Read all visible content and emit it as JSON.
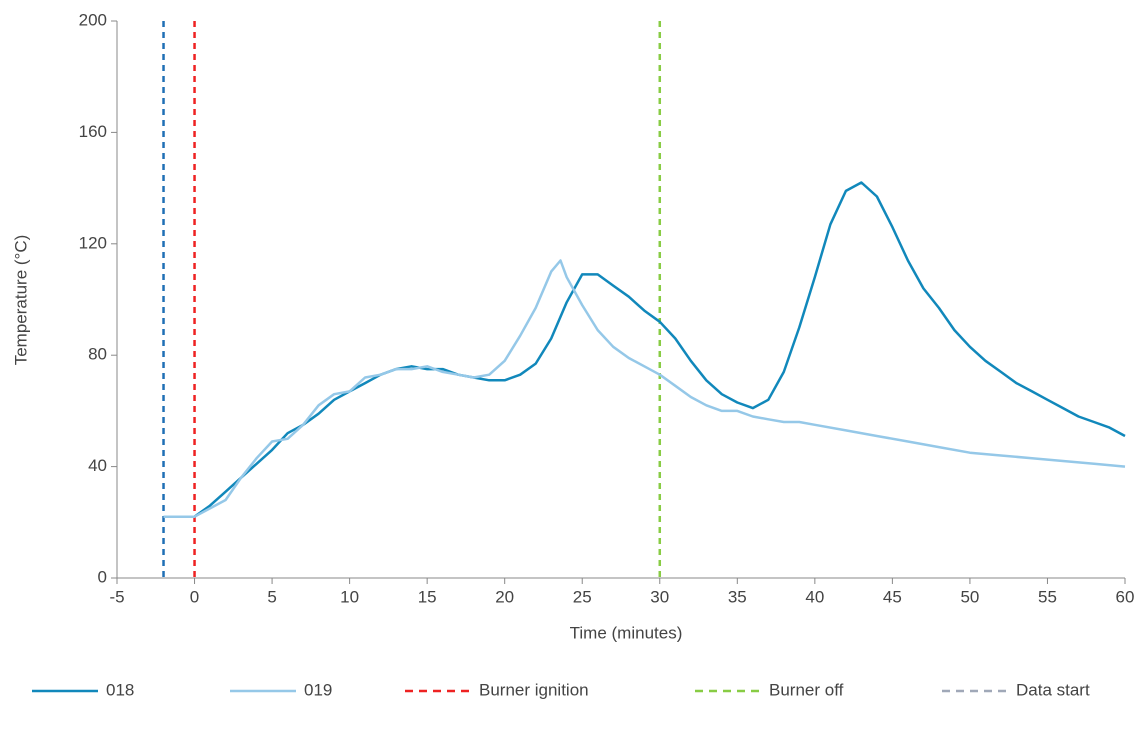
{
  "chart_data": {
    "type": "line",
    "x_label": "Time (minutes)",
    "y_label": "Temperature (°C)",
    "xlim": [
      -5,
      60
    ],
    "xticks": [
      -5,
      0,
      5,
      10,
      15,
      20,
      25,
      30,
      35,
      40,
      45,
      50,
      55,
      60
    ],
    "ylim": [
      0,
      200
    ],
    "yticks": [
      0,
      40,
      80,
      120,
      160,
      200
    ],
    "grid": false,
    "series": [
      {
        "name": "018",
        "color": "#1188bb",
        "x": [
          -2,
          -1,
          0,
          1,
          2,
          3,
          4,
          5,
          6,
          7,
          8,
          9,
          10,
          11,
          12,
          13,
          14,
          15,
          16,
          17,
          18,
          19,
          20,
          21,
          22,
          23,
          24,
          25,
          26,
          27,
          28,
          29,
          30,
          31,
          32,
          33,
          34,
          35,
          36,
          37,
          38,
          39,
          40,
          41,
          42,
          43,
          44,
          45,
          46,
          47,
          48,
          49,
          50,
          51,
          52,
          53,
          54,
          55,
          56,
          57,
          58,
          59,
          60
        ],
        "values": [
          22,
          22,
          22,
          26,
          31,
          36,
          41,
          46,
          52,
          55,
          59,
          64,
          67,
          70,
          73,
          75,
          76,
          75,
          75,
          73,
          72,
          71,
          71,
          73,
          77,
          86,
          99,
          109,
          109,
          105,
          101,
          96,
          92,
          86,
          78,
          71,
          66,
          63,
          61,
          64,
          74,
          90,
          108,
          127,
          139,
          142,
          137,
          126,
          114,
          104,
          97,
          89,
          83,
          78,
          74,
          70,
          67,
          64,
          61,
          58,
          56,
          54,
          51
        ]
      },
      {
        "name": "019",
        "color": "#95c8e8",
        "x": [
          -2,
          -1,
          0,
          1,
          2,
          3,
          4,
          5,
          6,
          7,
          8,
          9,
          10,
          11,
          12,
          13,
          14,
          15,
          16,
          17,
          18,
          19,
          20,
          21,
          22,
          23,
          23.6,
          24,
          25,
          26,
          27,
          28,
          29,
          30,
          31,
          32,
          33,
          34,
          35,
          36,
          37,
          38,
          39,
          40,
          42,
          44,
          46,
          48,
          50,
          52,
          54,
          56,
          58,
          60
        ],
        "values": [
          22,
          22,
          22,
          25,
          28,
          36,
          43,
          49,
          50,
          55,
          62,
          66,
          67,
          72,
          73,
          75,
          75,
          76,
          74,
          73,
          72,
          73,
          78,
          87,
          97,
          110,
          114,
          108,
          98,
          89,
          83,
          79,
          76,
          73,
          69,
          65,
          62,
          60,
          60,
          58,
          57,
          56,
          56,
          55,
          53,
          51,
          49,
          47,
          45,
          44,
          43,
          42,
          41,
          40
        ]
      }
    ],
    "vlines": [
      {
        "name": "Burner ignition",
        "x": 0,
        "color": "#ee2222"
      },
      {
        "name": "Burner off",
        "x": 30,
        "color": "#88cc44"
      },
      {
        "name": "Data start",
        "x": -2,
        "color": "#1f6fb5",
        "legend_color": "#a0a8b8"
      }
    ]
  }
}
